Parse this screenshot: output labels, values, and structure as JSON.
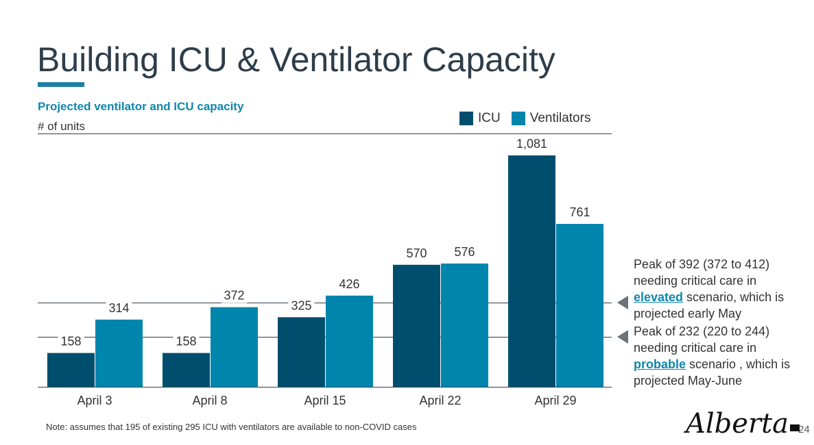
{
  "slide": {
    "title": "Building ICU & Ventilator Capacity",
    "page_number": "24",
    "logo_text": "Alberta",
    "note": "Note: assumes that 195 of existing 295 ICU with ventilators are available to non-COVID cases"
  },
  "chart_data": {
    "type": "bar",
    "title": "Projected ventilator and ICU capacity",
    "ylabel": "# of units",
    "xlabel": "",
    "categories": [
      "April 3",
      "April 8",
      "April 15",
      "April 22",
      "April 29"
    ],
    "series": [
      {
        "name": "ICU",
        "color": "#004e6d",
        "values": [
          158,
          158,
          325,
          570,
          1081
        ],
        "labels": [
          "158",
          "158",
          "325",
          "570",
          "1,081"
        ]
      },
      {
        "name": "Ventilators",
        "color": "#0085ad",
        "values": [
          314,
          372,
          426,
          576,
          761
        ],
        "labels": [
          "314",
          "372",
          "426",
          "576",
          "761"
        ]
      }
    ],
    "ylim": [
      0,
      1200
    ],
    "legend_position": "top-right",
    "grid": false,
    "reference_lines": [
      {
        "value": 392,
        "text_parts": [
          "Peak of 392 (372 to 412) needing critical care in ",
          "elevated",
          " scenario, which is projected early May"
        ]
      },
      {
        "value": 232,
        "text_parts": [
          "Peak of 232 (220 to 244) needing critical care in ",
          "probable",
          " scenario , which is projected May-June"
        ]
      }
    ]
  }
}
